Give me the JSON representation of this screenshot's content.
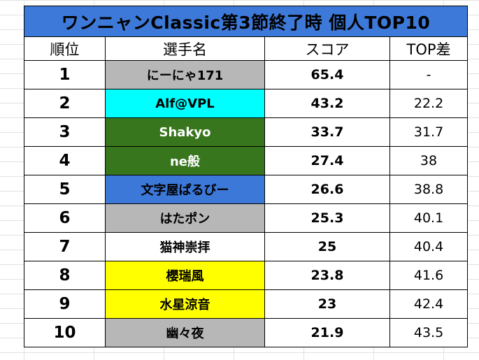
{
  "title": "ワンニャンClassic第3節終了時 個人TOP10",
  "headers": [
    "順位",
    "選手名",
    "スコア",
    "TOP差"
  ],
  "rows": [
    {
      "rank": "1",
      "name": "にーにゃ171",
      "score": "65.4",
      "diff": "-",
      "bg": "#b7b7b7",
      "fg": "#000000"
    },
    {
      "rank": "2",
      "name": "Alf@VPL",
      "score": "43.2",
      "diff": "22.2",
      "bg": "#00ffff",
      "fg": "#000000"
    },
    {
      "rank": "3",
      "name": "Shakyo",
      "score": "33.7",
      "diff": "31.7",
      "bg": "#38761d",
      "fg": "#ffffff"
    },
    {
      "rank": "4",
      "name": "ne般",
      "score": "27.4",
      "diff": "38",
      "bg": "#38761d",
      "fg": "#ffffff"
    },
    {
      "rank": "5",
      "name": "文字屋ぱるびー",
      "score": "26.6",
      "diff": "38.8",
      "bg": "#3c78d8",
      "fg": "#000000"
    },
    {
      "rank": "6",
      "name": "はたポン",
      "score": "25.3",
      "diff": "40.1",
      "bg": "#b7b7b7",
      "fg": "#000000"
    },
    {
      "rank": "7",
      "name": "猫神崇拝",
      "score": "25",
      "diff": "40.4",
      "bg": "#ffffff",
      "fg": "#000000"
    },
    {
      "rank": "8",
      "name": "櫻瑞風",
      "score": "23.8",
      "diff": "41.6",
      "bg": "#ffff00",
      "fg": "#000000"
    },
    {
      "rank": "9",
      "name": "水星涼音",
      "score": "23",
      "diff": "42.4",
      "bg": "#ffff00",
      "fg": "#000000"
    },
    {
      "rank": "10",
      "name": "幽々夜",
      "score": "21.9",
      "diff": "43.5",
      "bg": "#b7b7b7",
      "fg": "#000000"
    }
  ]
}
